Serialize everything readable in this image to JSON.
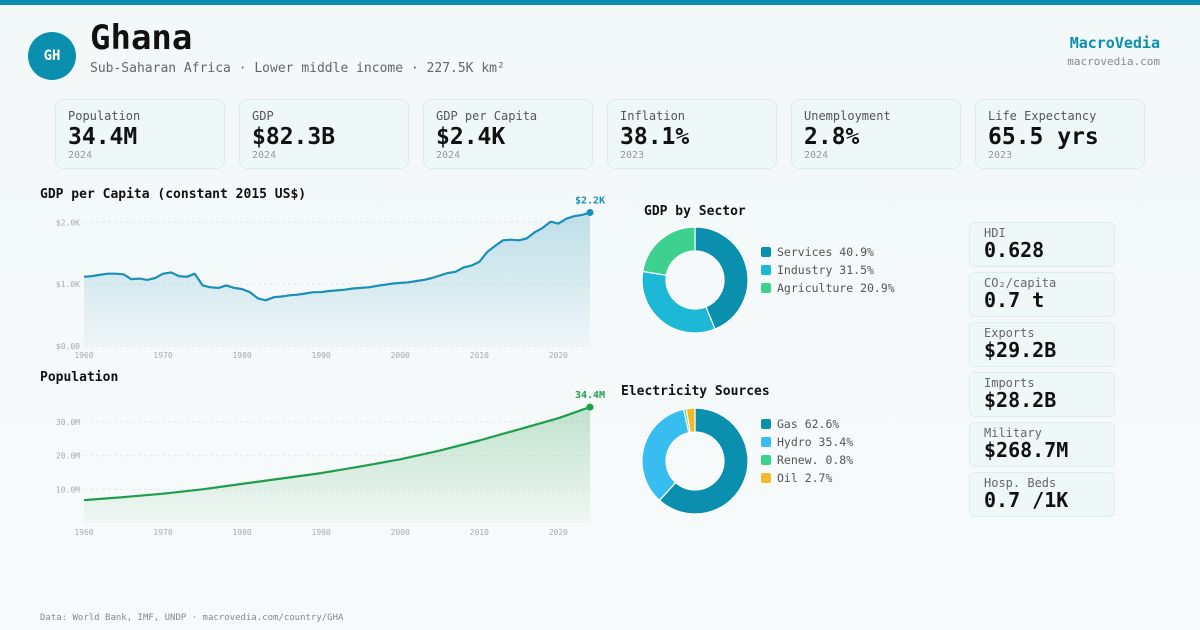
{
  "header": {
    "badge": "GH",
    "title": "Ghana",
    "subtitle": "Sub-Saharan Africa · Lower middle income · 227.5K km²",
    "brand": "MacroVedia",
    "brand_url": "macrovedia.com"
  },
  "stats": [
    {
      "label": "Population",
      "value": "34.4M",
      "year": "2024"
    },
    {
      "label": "GDP",
      "value": "$82.3B",
      "year": "2024"
    },
    {
      "label": "GDP per Capita",
      "value": "$2.4K",
      "year": "2024"
    },
    {
      "label": "Inflation",
      "value": "38.1%",
      "year": "2023"
    },
    {
      "label": "Unemployment",
      "value": "2.8%",
      "year": "2024"
    },
    {
      "label": "Life Expectancy",
      "value": "65.5 yrs",
      "year": "2023"
    }
  ],
  "side_stats": [
    {
      "label": "HDI",
      "value": "0.628"
    },
    {
      "label": "CO₂/capita",
      "value": "0.7 t"
    },
    {
      "label": "Exports",
      "value": "$29.2B"
    },
    {
      "label": "Imports",
      "value": "$28.2B"
    },
    {
      "label": "Military",
      "value": "$268.7M"
    },
    {
      "label": "Hosp. Beds",
      "value": "0.7 /1K"
    }
  ],
  "colors": {
    "accent": "#0b8fae",
    "gdp_line": "#1a8fb8",
    "pop_line": "#1e9e4a",
    "services": "#0b8fae",
    "industry": "#1cb8d6",
    "agriculture": "#3dd18f",
    "gas": "#0b8fae",
    "hydro": "#38bdf0",
    "renew": "#3dd18f",
    "oil": "#f2b92c"
  },
  "footer": "Data: World Bank, IMF, UNDP · macrovedia.com/country/GHA",
  "chart_data": [
    {
      "type": "area",
      "title": "GDP per Capita (constant 2015 US$)",
      "end_label": "$2.2K",
      "ylim": [
        0,
        2200
      ],
      "ytick_labels": [
        "$0.00",
        "$1.0K",
        "$2.0K"
      ],
      "yticks": [
        0,
        1000,
        2000
      ],
      "xticks": [
        1960,
        1970,
        1980,
        1990,
        2000,
        2010,
        2020
      ],
      "grid": true,
      "x": [
        1960,
        1961,
        1962,
        1963,
        1964,
        1965,
        1966,
        1967,
        1968,
        1969,
        1970,
        1971,
        1972,
        1973,
        1974,
        1975,
        1976,
        1977,
        1978,
        1979,
        1980,
        1981,
        1982,
        1983,
        1984,
        1985,
        1986,
        1987,
        1988,
        1989,
        1990,
        1991,
        1992,
        1993,
        1994,
        1995,
        1996,
        1997,
        1998,
        1999,
        2000,
        2001,
        2002,
        2003,
        2004,
        2005,
        2006,
        2007,
        2008,
        2009,
        2010,
        2011,
        2012,
        2013,
        2014,
        2015,
        2016,
        2017,
        2018,
        2019,
        2020,
        2021,
        2022,
        2023,
        2024
      ],
      "y": [
        1120,
        1130,
        1150,
        1170,
        1170,
        1160,
        1080,
        1090,
        1070,
        1100,
        1170,
        1190,
        1130,
        1120,
        1170,
        980,
        950,
        940,
        980,
        940,
        920,
        870,
        770,
        740,
        790,
        800,
        820,
        830,
        850,
        870,
        870,
        890,
        900,
        910,
        930,
        940,
        950,
        970,
        990,
        1010,
        1020,
        1030,
        1050,
        1070,
        1100,
        1140,
        1180,
        1200,
        1270,
        1300,
        1360,
        1520,
        1620,
        1710,
        1720,
        1710,
        1740,
        1840,
        1910,
        2010,
        1980,
        2060,
        2100,
        2120,
        2160
      ]
    },
    {
      "type": "area",
      "title": "Population",
      "end_label": "34.4M",
      "ylim": [
        0,
        38
      ],
      "ytick_labels": [
        "10.0M",
        "20.0M",
        "30.0M"
      ],
      "yticks": [
        10,
        20,
        30
      ],
      "xticks": [
        1960,
        1970,
        1980,
        1990,
        2000,
        2010,
        2020
      ],
      "grid": true,
      "x": [
        1960,
        1965,
        1970,
        1975,
        1980,
        1985,
        1990,
        1995,
        2000,
        2005,
        2010,
        2015,
        2020,
        2024
      ],
      "y": [
        6.8,
        7.7,
        8.7,
        10.0,
        11.6,
        13.2,
        14.8,
        16.8,
        18.9,
        21.5,
        24.5,
        27.8,
        31.1,
        34.4
      ]
    },
    {
      "type": "pie",
      "title": "GDP by Sector",
      "labels": [
        "Services 40.9%",
        "Industry 31.5%",
        "Agriculture 20.9%"
      ],
      "values": [
        40.9,
        31.5,
        20.9
      ],
      "colors": [
        "#0b8fae",
        "#1cb8d6",
        "#3dd18f"
      ]
    },
    {
      "type": "pie",
      "title": "Electricity Sources",
      "labels": [
        "Gas 62.6%",
        "Hydro 35.4%",
        "Renew. 0.8%",
        "Oil 2.7%"
      ],
      "values": [
        62.6,
        35.4,
        0.8,
        2.7
      ],
      "colors": [
        "#0b8fae",
        "#38bdf0",
        "#3dd18f",
        "#f2b92c"
      ]
    }
  ]
}
